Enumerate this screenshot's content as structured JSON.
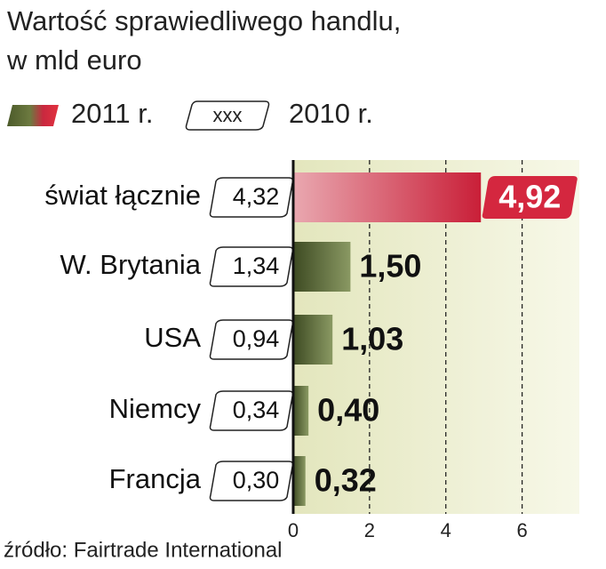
{
  "chart_data": {
    "type": "bar",
    "orientation": "horizontal",
    "title": "Wartość sprawiedliwego handlu,",
    "subtitle": "w mld euro",
    "legend_sample": "xxx",
    "source": "źródło: Fairtrade International",
    "categories": [
      "świat łącznie",
      "W. Brytania",
      "USA",
      "Niemcy",
      "Francja"
    ],
    "series": [
      {
        "name": "2011 r.",
        "colors": [
          "#d4273f",
          "#5c6b34",
          "#5c6b34",
          "#5c6b34",
          "#5c6b34"
        ],
        "values": [
          4.92,
          1.5,
          1.03,
          0.4,
          0.32
        ],
        "value_labels": [
          "4,92",
          "1,50",
          "1,03",
          "0,40",
          "0,32"
        ]
      },
      {
        "name": "2010 r.",
        "color": "#ffffff",
        "values": [
          4.32,
          1.34,
          0.94,
          0.34,
          0.3
        ],
        "value_labels": [
          "4,32",
          "1,34",
          "0,94",
          "0,34",
          "0,30"
        ]
      }
    ],
    "xlim": [
      0,
      7.5
    ],
    "xticks": [
      0,
      2,
      4,
      6
    ],
    "grid": true
  }
}
